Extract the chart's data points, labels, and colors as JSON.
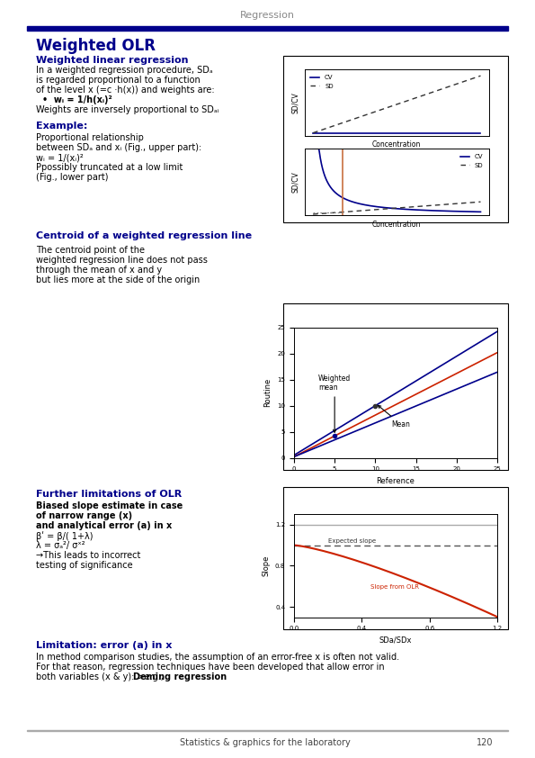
{
  "title": "Regression",
  "page_title": "Weighted OLR",
  "footer": "Statistics & graphics for the laboratory",
  "page_number": "120",
  "header_bar_color": "#00008B",
  "title_color": "#808080",
  "section_color": "#00008B",
  "text_color": "#000000",
  "bg_color": "#FFFFFF"
}
